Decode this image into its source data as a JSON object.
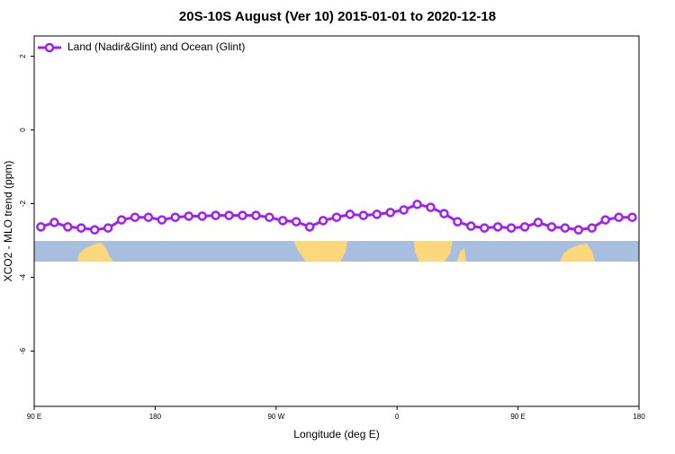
{
  "chart_data": {
    "type": "line",
    "title": "20S-10S August (Ver 10)   2015-01-01 to 2020-12-18",
    "xlabel": "Longitude (deg E)",
    "ylabel": "XCO2 - MLO trend (ppm)",
    "xlim": [
      90,
      540
    ],
    "xticks": [
      {
        "value": 90,
        "label": "90 E"
      },
      {
        "value": 180,
        "label": "180"
      },
      {
        "value": 270,
        "label": "90 W"
      },
      {
        "value": 360,
        "label": "0"
      },
      {
        "value": 450,
        "label": "90 E"
      },
      {
        "value": 540,
        "label": "180"
      }
    ],
    "ylim": [
      -7.5,
      2.55
    ],
    "yticks": [
      2,
      0,
      -2,
      -4,
      -6
    ],
    "legend": "top-left",
    "x": [
      95,
      105,
      115,
      125,
      135,
      145,
      155,
      165,
      175,
      185,
      195,
      205,
      215,
      225,
      235,
      245,
      255,
      265,
      275,
      285,
      295,
      305,
      315,
      325,
      335,
      345,
      355,
      365,
      375,
      385,
      395,
      405,
      415,
      425,
      435,
      445,
      455,
      465,
      475,
      485,
      495,
      505,
      515,
      525,
      535
    ],
    "series": [
      {
        "name": "Land (Nadir&Glint) and Ocean (Glint)",
        "color": "#a020f0",
        "values": [
          -2.63,
          -2.51,
          -2.63,
          -2.66,
          -2.71,
          -2.66,
          -2.44,
          -2.37,
          -2.37,
          -2.44,
          -2.37,
          -2.34,
          -2.34,
          -2.32,
          -2.32,
          -2.32,
          -2.32,
          -2.37,
          -2.46,
          -2.49,
          -2.63,
          -2.46,
          -2.37,
          -2.29,
          -2.32,
          -2.29,
          -2.24,
          -2.17,
          -2.02,
          -2.1,
          -2.27,
          -2.49,
          -2.61,
          -2.66,
          -2.63,
          -2.66,
          -2.63,
          -2.51,
          -2.63,
          -2.66,
          -2.71,
          -2.66,
          -2.44,
          -2.37,
          -2.37
        ]
      }
    ]
  }
}
